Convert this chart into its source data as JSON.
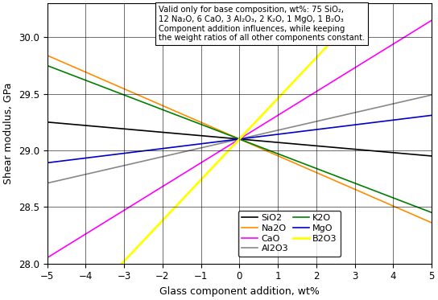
{
  "xlabel": "Glass component addition, wt%",
  "ylabel": "Shear modulus, GPa",
  "xlim": [
    -5,
    5
  ],
  "ylim": [
    28,
    30.3
  ],
  "yticks": [
    28,
    28.5,
    29,
    29.5,
    30
  ],
  "xticks": [
    -5,
    -4,
    -3,
    -2,
    -1,
    0,
    1,
    2,
    3,
    4,
    5
  ],
  "annotation": "Valid only for base composition, wt%: 75 SiO₂,\n12 Na₂O, 6 CaO, 3 Al₂O₃, 2 K₂O, 1 MgO, 1 B₂O₃\nComponent addition influences, while keeping\nthe weight ratios of all other components constant.",
  "intercept": 29.1,
  "lines": [
    {
      "name": "SiO2",
      "color": "#000000",
      "slope": -0.03
    },
    {
      "name": "Na2O",
      "color": "#FF8C00",
      "slope": -0.148
    },
    {
      "name": "CaO",
      "color": "#FF00FF",
      "slope": 0.21
    },
    {
      "name": "Al2O3",
      "color": "#888888",
      "slope": 0.078
    },
    {
      "name": "K2O",
      "color": "#008000",
      "slope": -0.13
    },
    {
      "name": "MgO",
      "color": "#0000CD",
      "slope": 0.042
    },
    {
      "name": "B2O3",
      "color": "#FFFF00",
      "slope": 0.36
    }
  ],
  "legend_order_col1": [
    "SiO2",
    "CaO",
    "K2O",
    "B2O3"
  ],
  "legend_order_col2": [
    "Na2O",
    "Al2O3",
    "MgO"
  ],
  "background_color": "#ffffff"
}
